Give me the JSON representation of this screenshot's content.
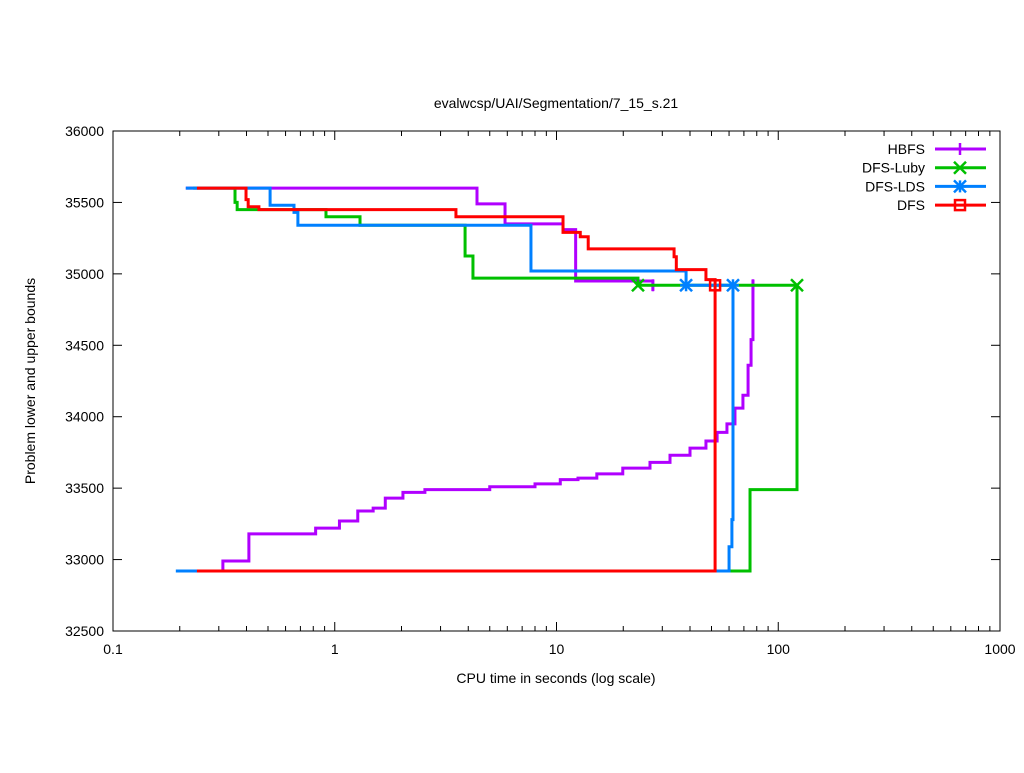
{
  "chart_data": {
    "type": "line",
    "title": "evalwcsp/UAI/Segmentation/7_15_s.21",
    "xlabel": "CPU time in seconds (log scale)",
    "ylabel": "Problem lower and upper bounds",
    "xscale": "log",
    "xlim": [
      0.1,
      1000
    ],
    "ylim": [
      32500,
      36000
    ],
    "xticks": [
      {
        "v": 0.1,
        "label": "0.1"
      },
      {
        "v": 1,
        "label": "1"
      },
      {
        "v": 10,
        "label": "10"
      },
      {
        "v": 100,
        "label": "100"
      },
      {
        "v": 1000,
        "label": "1000"
      }
    ],
    "yticks": [
      {
        "v": 32500,
        "label": "32500"
      },
      {
        "v": 33000,
        "label": "33000"
      },
      {
        "v": 33500,
        "label": "33500"
      },
      {
        "v": 34000,
        "label": "34000"
      },
      {
        "v": 34500,
        "label": "34500"
      },
      {
        "v": 35000,
        "label": "35000"
      },
      {
        "v": 35500,
        "label": "35500"
      },
      {
        "v": 36000,
        "label": "36000"
      }
    ],
    "grid": false,
    "legend_position": "top-right",
    "line_style": "steps",
    "series": [
      {
        "name": "HBFS",
        "color": "#b000ff",
        "marker": "plus",
        "upper": [
          [
            0.213,
            35600
          ],
          [
            4.38,
            35490
          ],
          [
            5.86,
            35350
          ],
          [
            10.7,
            35310
          ],
          [
            12.2,
            34950
          ],
          [
            27.2,
            34950
          ],
          [
            27.2,
            34880
          ]
        ],
        "lower": [
          [
            0.239,
            32920
          ],
          [
            0.313,
            32990
          ],
          [
            0.41,
            33180
          ],
          [
            0.82,
            33220
          ],
          [
            1.05,
            33270
          ],
          [
            1.27,
            33340
          ],
          [
            1.49,
            33360
          ],
          [
            1.69,
            33430
          ],
          [
            2.03,
            33470
          ],
          [
            2.55,
            33490
          ],
          [
            5.0,
            33510
          ],
          [
            8.0,
            33530
          ],
          [
            10.4,
            33560
          ],
          [
            12.5,
            33570
          ],
          [
            15.2,
            33600
          ],
          [
            19.9,
            33640
          ],
          [
            26.4,
            33680
          ],
          [
            32.5,
            33730
          ],
          [
            40,
            33780
          ],
          [
            47.2,
            33830
          ],
          [
            53,
            33890
          ],
          [
            58.7,
            33950
          ],
          [
            63.8,
            34060
          ],
          [
            69.3,
            34150
          ],
          [
            73.1,
            34360
          ],
          [
            75.4,
            34540
          ],
          [
            76.9,
            34960
          ]
        ],
        "points": [
          [
            27.2,
            34920
          ],
          [
            76.9,
            34920
          ]
        ]
      },
      {
        "name": "DFS-Luby",
        "color": "#00c000",
        "marker": "cross",
        "upper": [
          [
            0.23,
            35600
          ],
          [
            0.355,
            35500
          ],
          [
            0.363,
            35450
          ],
          [
            0.913,
            35400
          ],
          [
            1.3,
            35340
          ],
          [
            3.87,
            35125
          ],
          [
            4.2,
            34970
          ],
          [
            23.3,
            34970
          ],
          [
            23.3,
            34920
          ],
          [
            121.5,
            34920
          ]
        ],
        "lower": [
          [
            0.21,
            32920
          ],
          [
            74.6,
            33490
          ],
          [
            121.5,
            33780
          ],
          [
            121.5,
            34920
          ]
        ],
        "points": [
          [
            23.3,
            34920
          ],
          [
            121.5,
            34920
          ]
        ]
      },
      {
        "name": "DFS-LDS",
        "color": "#0080ff",
        "marker": "star",
        "upper": [
          [
            0.213,
            35600
          ],
          [
            0.511,
            35480
          ],
          [
            0.655,
            35430
          ],
          [
            0.682,
            35340
          ],
          [
            7.67,
            35020
          ],
          [
            38.4,
            35020
          ],
          [
            38.4,
            34920
          ],
          [
            62.5,
            34920
          ]
        ],
        "lower": [
          [
            0.192,
            32920
          ],
          [
            60.0,
            33090
          ],
          [
            61.8,
            33280
          ],
          [
            62.5,
            34920
          ]
        ],
        "points": [
          [
            38.4,
            34920
          ],
          [
            62.5,
            34920
          ]
        ]
      },
      {
        "name": "DFS",
        "color": "#ff0000",
        "marker": "square",
        "upper": [
          [
            0.239,
            35600
          ],
          [
            0.398,
            35520
          ],
          [
            0.407,
            35470
          ],
          [
            0.455,
            35450
          ],
          [
            3.52,
            35400
          ],
          [
            10.7,
            35350
          ],
          [
            10.7,
            35290
          ],
          [
            12.8,
            35260
          ],
          [
            13.9,
            35175
          ],
          [
            33.9,
            35120
          ],
          [
            34.7,
            35030
          ],
          [
            47.2,
            34960
          ],
          [
            51.9,
            34920
          ]
        ],
        "lower": [
          [
            0.239,
            32920
          ],
          [
            51.9,
            32920
          ],
          [
            51.9,
            34920
          ]
        ],
        "points": [
          [
            51.9,
            34920
          ]
        ]
      }
    ]
  }
}
